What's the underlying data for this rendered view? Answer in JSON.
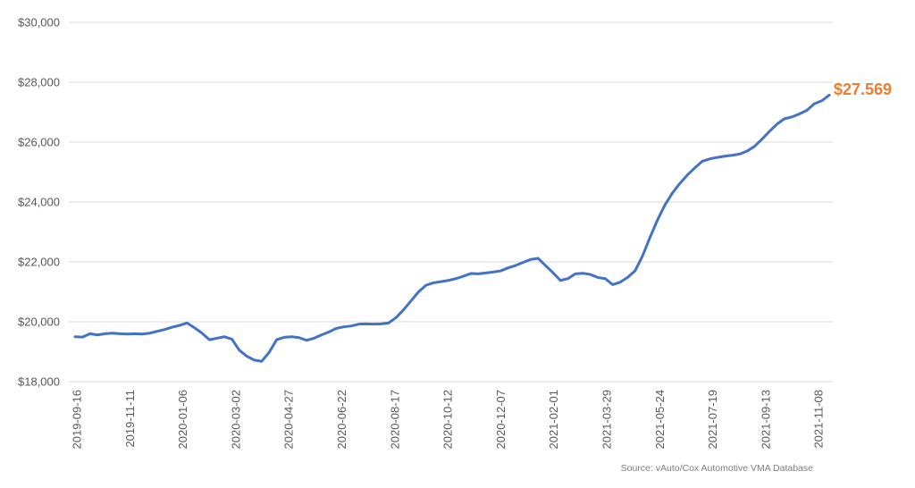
{
  "chart_data": {
    "type": "line",
    "title": "",
    "xlabel": "",
    "ylabel": "",
    "ylim": [
      18000,
      30000
    ],
    "yticks": [
      18000,
      20000,
      22000,
      24000,
      26000,
      28000,
      30000
    ],
    "ytick_labels": [
      "$18,000",
      "$20,000",
      "$22,000",
      "$24,000",
      "$26,000",
      "$28,000",
      "$30,000"
    ],
    "xtick_labels": [
      "2019-09-16",
      "2019-11-11",
      "2020-01-06",
      "2020-03-02",
      "2020-04-27",
      "2020-06-22",
      "2020-08-17",
      "2020-10-12",
      "2020-12-07",
      "2021-02-01",
      "2021-03-29",
      "2021-05-24",
      "2021-07-19",
      "2021-09-13",
      "2021-11-08"
    ],
    "grid": "horizontal",
    "line_color": "#4472c4",
    "end_label_text": "$27.569",
    "end_label_color": "#ed7d31",
    "source": "Source: vAuto/Cox Automotive VMA Database",
    "series": [
      {
        "values": [
          19500,
          19490,
          19600,
          19560,
          19600,
          19620,
          19600,
          19590,
          19600,
          19590,
          19620,
          19680,
          19740,
          19820,
          19880,
          19960,
          19800,
          19620,
          19400,
          19450,
          19500,
          19420,
          19050,
          18850,
          18720,
          18680,
          18980,
          19400,
          19480,
          19500,
          19470,
          19380,
          19450,
          19560,
          19660,
          19780,
          19830,
          19860,
          19920,
          19930,
          19920,
          19930,
          19960,
          20140,
          20400,
          20700,
          21000,
          21220,
          21300,
          21340,
          21380,
          21440,
          21520,
          21610,
          21600,
          21630,
          21660,
          21700,
          21800,
          21880,
          21980,
          22080,
          22120,
          21880,
          21640,
          21380,
          21440,
          21600,
          21620,
          21580,
          21480,
          21440,
          21240,
          21320,
          21480,
          21700,
          22200,
          22820,
          23400,
          23900,
          24300,
          24620,
          24900,
          25140,
          25360,
          25440,
          25490,
          25530,
          25560,
          25600,
          25700,
          25860,
          26100,
          26360,
          26600,
          26780,
          26840,
          26940,
          27060,
          27280,
          27380,
          27569
        ]
      }
    ]
  }
}
